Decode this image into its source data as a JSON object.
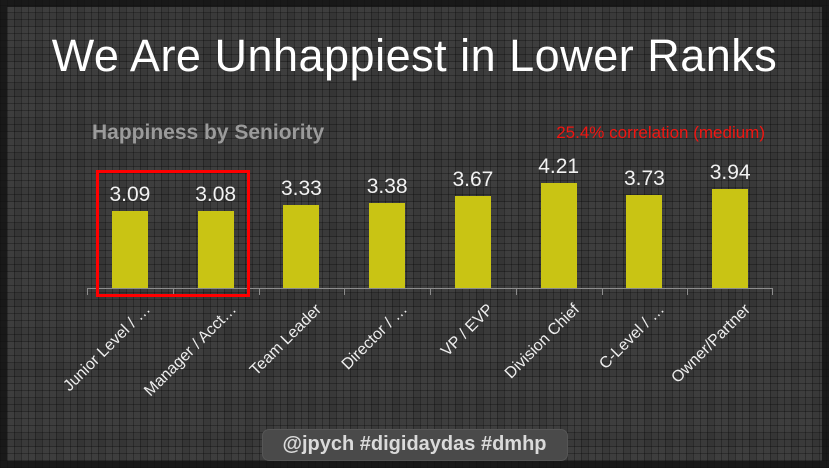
{
  "slide": {
    "title": "We Are Unhappiest in Lower Ranks",
    "footer_tag": "@jpych #digidaydas #dmhp"
  },
  "chart_data": {
    "type": "bar",
    "title": "Happiness by Seniority",
    "annotation": "25.4% correlation (medium)",
    "categories": [
      "Junior Level / …",
      "Manager / Acct…",
      "Team Leader",
      "Director / …",
      "VP / EVP",
      "Division Chief",
      "C-Level / …",
      "Owner/Partner"
    ],
    "values": [
      3.09,
      3.08,
      3.33,
      3.38,
      3.67,
      4.21,
      3.73,
      3.94
    ],
    "ylim": [
      0,
      4.6
    ],
    "grid": "off",
    "legend": "none",
    "bar_color": "#c9c414",
    "value_label_color": "#f2f2f2",
    "axis_color": "#8c8c8c",
    "highlight": {
      "indices": [
        0,
        1
      ],
      "box_color": "#ff0000"
    }
  },
  "colors": {
    "background": "#353535",
    "frame": "#101010",
    "title_text": "#ffffff",
    "subtitle_text": "#9b9b9b",
    "annotation_red": "#f01511",
    "footer_bg": "#4a4a4a",
    "footer_text": "#dadada"
  }
}
